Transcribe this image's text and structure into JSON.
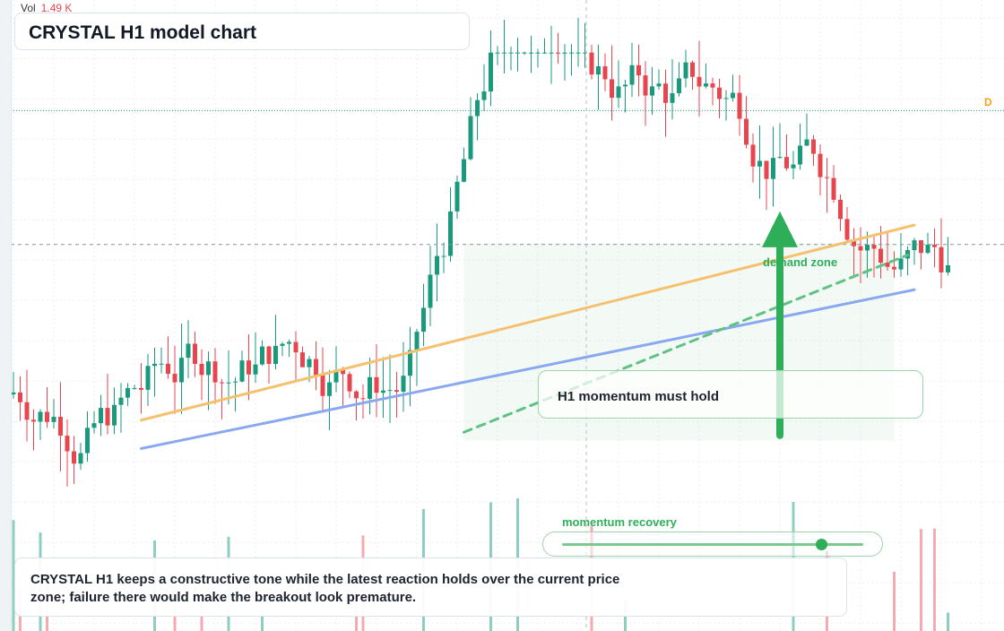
{
  "header": {
    "vol_label": "Vol",
    "vol_value": "1.49 K",
    "title": "CRYSTAL H1 model chart"
  },
  "annotations": {
    "zone_label": "demand zone",
    "note": "H1 momentum must hold",
    "slider_label": "momentum recovery",
    "slider_value": 0.86,
    "badge": "D",
    "caption": "CRYSTAL H1 keeps a constructive tone while the latest reaction holds over the current price zone; failure there would make the breakout look premature."
  },
  "colors": {
    "up": "#1a9a7c",
    "down": "#e8464f",
    "trend_orange": "#f5c06f",
    "trend_blue": "#8aa8ef",
    "accent_green": "#2fae5a",
    "vol_up": "#8ccfc0",
    "vol_down": "#f3aab0"
  },
  "chart_data": {
    "type": "candlestick",
    "title": "CRYSTAL H1 model chart",
    "xlabel": "",
    "ylabel": "",
    "ylim": [
      0,
      120
    ],
    "grid": true,
    "reference_lines": {
      "high": 98.98,
      "current": 73.5
    },
    "seed": 7,
    "bars": 140,
    "start_price": 45,
    "trendlines": [
      {
        "name": "",
        "color": "orange",
        "from": [
          19,
          40.1
        ],
        "to": [
          134,
          77.2
        ]
      },
      {
        "name": "",
        "color": "blue",
        "from": [
          19,
          34.7
        ],
        "to": [
          134,
          64.9
        ]
      },
      {
        "name": "",
        "color": "green",
        "style": "dashed",
        "from": [
          67,
          37.8
        ],
        "to": [
          133,
          71.5
        ]
      }
    ],
    "arrow": {
      "direction": "up",
      "at_bar": 114,
      "from": 37.2,
      "to": 78.1
    },
    "demand_zone": {
      "from_bar": 67,
      "to_bar": 131,
      "low": 36.2,
      "high": 73.8
    }
  }
}
